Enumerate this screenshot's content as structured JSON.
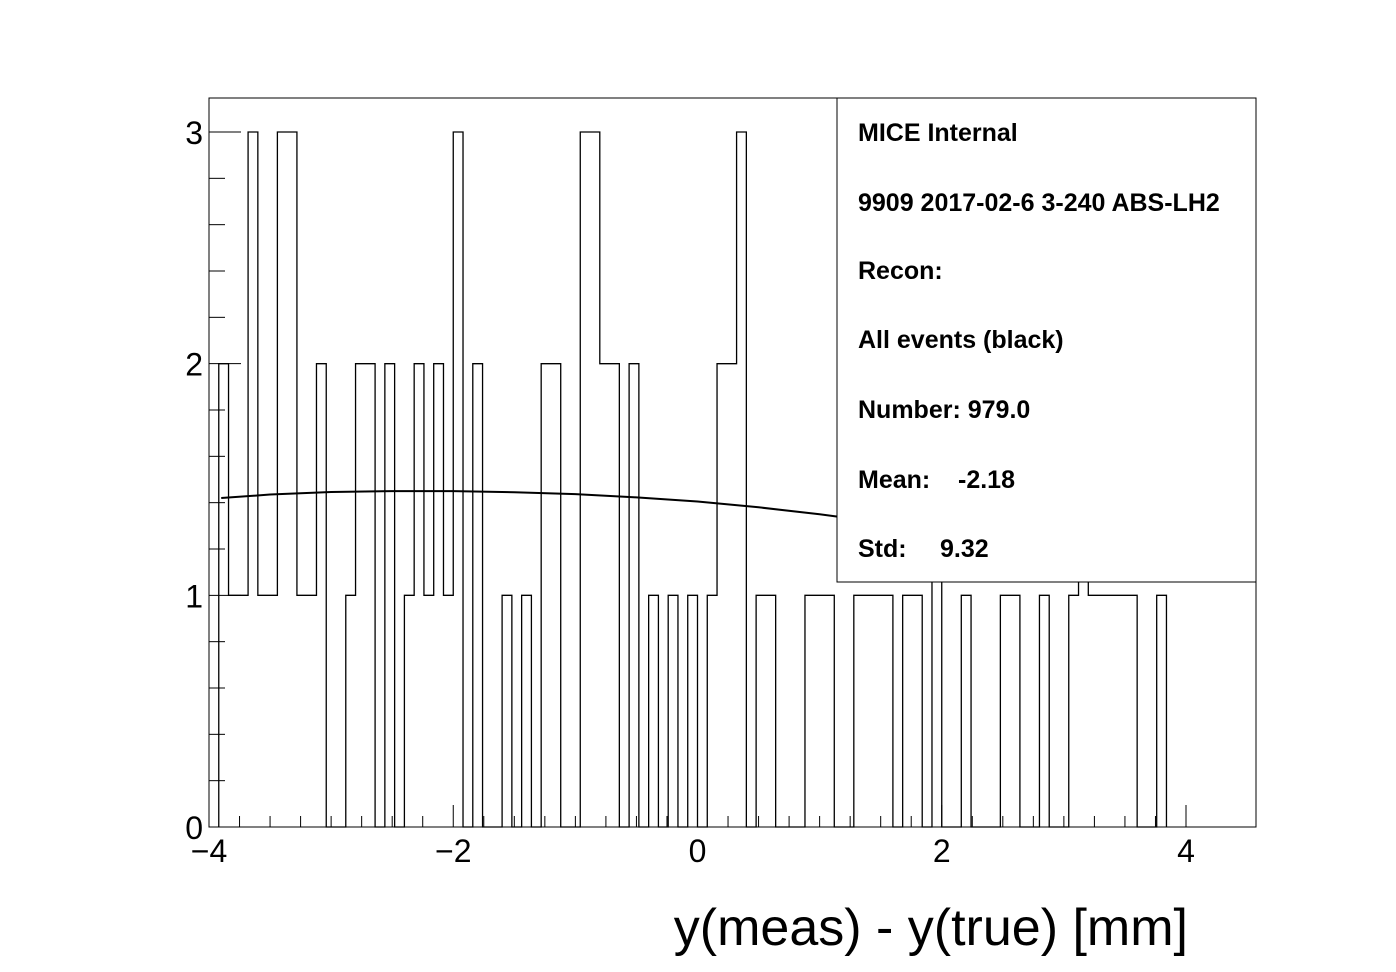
{
  "chart_data": {
    "type": "histogram",
    "xlabel": "y(meas) - y(true) [mm]",
    "ylabel": "",
    "xlim": [
      -4,
      4
    ],
    "ylim": [
      0,
      3.15
    ],
    "x_ticks": [
      -4,
      -2,
      0,
      2,
      4
    ],
    "x_tick_labels": [
      "−4",
      "−2",
      "0",
      "2",
      "4"
    ],
    "y_ticks": [
      0,
      1,
      2,
      3
    ],
    "y_tick_labels": [
      "0",
      "1",
      "2",
      "3"
    ],
    "bin_edges": [
      -3.92,
      -3.84,
      -3.68,
      -3.6,
      -3.44,
      -3.28,
      -3.12,
      -3.04,
      -2.88,
      -2.8,
      -2.64,
      -2.56,
      -2.48,
      -2.4,
      -2.32,
      -2.24,
      -2.16,
      -2.08,
      -2.0,
      -1.92,
      -1.84,
      -1.76,
      -1.6,
      -1.52,
      -1.44,
      -1.36,
      -1.28,
      -1.12,
      -0.96,
      -0.8,
      -0.64,
      -0.56,
      -0.48,
      -0.4,
      -0.32,
      -0.24,
      -0.16,
      -0.08,
      0.0,
      0.08,
      0.16,
      0.32,
      0.4,
      0.48,
      0.64,
      0.88,
      1.12,
      1.28,
      1.6,
      1.68,
      1.84,
      1.92,
      2.0,
      2.16,
      2.24,
      2.48,
      2.64,
      2.8,
      2.88,
      3.04,
      3.12,
      3.2,
      3.44,
      3.6,
      3.76,
      3.84
    ],
    "counts": [
      2,
      1,
      3,
      1,
      3,
      1,
      2,
      0,
      1,
      2,
      0,
      2,
      0,
      1,
      2,
      1,
      2,
      1,
      3,
      0,
      2,
      0,
      1,
      0,
      1,
      0,
      2,
      0,
      3,
      2,
      0,
      2,
      0,
      1,
      0,
      1,
      0,
      1,
      0,
      1,
      2,
      3,
      0,
      1,
      0,
      1,
      0,
      1,
      0,
      1,
      0,
      2,
      0,
      1,
      0,
      1,
      0,
      1,
      0,
      1,
      2,
      1,
      1,
      0,
      1
    ],
    "fit_curve": {
      "x": [
        -3.9,
        -3.5,
        -3.0,
        -2.5,
        -2.0,
        -1.5,
        -1.0,
        -0.5,
        0.0,
        0.5,
        1.0,
        1.5,
        2.0,
        2.5,
        3.0,
        3.5,
        3.9
      ],
      "y": [
        1.42,
        1.435,
        1.446,
        1.45,
        1.45,
        1.445,
        1.437,
        1.423,
        1.405,
        1.38,
        1.35,
        1.315,
        1.275,
        1.23,
        1.18,
        1.13,
        1.09
      ]
    },
    "stats_box": {
      "title": "MICE Internal",
      "run": "9909 2017-02-6 3-240 ABS-LH2",
      "recon": "Recon:",
      "events": "All events (black)",
      "number": "Number: 979.0",
      "mean_label": "Mean:",
      "mean_value": "-2.18",
      "std_label": "Std:",
      "std_value": "9.32"
    },
    "grid": false,
    "legend": "top-right"
  }
}
